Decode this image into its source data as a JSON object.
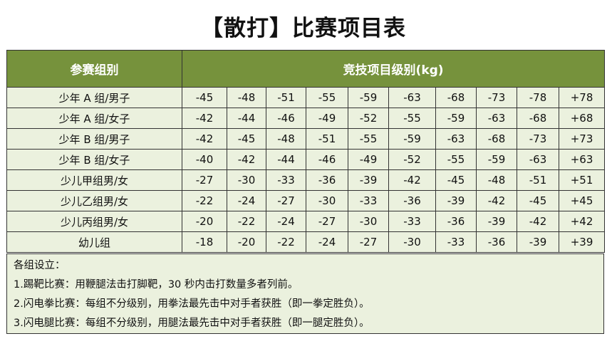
{
  "title": "【散打】比赛项目表",
  "table": {
    "headers": [
      "参赛组别",
      "竞技项目级别(kg)"
    ],
    "rows": [
      {
        "group": "少年 A 组/男子",
        "values": [
          "-45",
          "-48",
          "-51",
          "-55",
          "-59",
          "-63",
          "-68",
          "-73",
          "-78",
          "+78"
        ]
      },
      {
        "group": "少年 A 组/女子",
        "values": [
          "-42",
          "-44",
          "-46",
          "-49",
          "-52",
          "-55",
          "-59",
          "-63",
          "-68",
          "+68"
        ]
      },
      {
        "group": "少年 B 组/男子",
        "values": [
          "-42",
          "-45",
          "-48",
          "-51",
          "-55",
          "-59",
          "-63",
          "-68",
          "-73",
          "+73"
        ]
      },
      {
        "group": "少年 B 组/女子",
        "values": [
          "-40",
          "-42",
          "-44",
          "-46",
          "-49",
          "-52",
          "-55",
          "-59",
          "-63",
          "+63"
        ]
      },
      {
        "group": "少儿甲组男/女",
        "values": [
          "-27",
          "-30",
          "-33",
          "-36",
          "-39",
          "-42",
          "-45",
          "-48",
          "-51",
          "+51"
        ]
      },
      {
        "group": "少儿乙组男/女",
        "values": [
          "-22",
          "-24",
          "-27",
          "-30",
          "-33",
          "-36",
          "-39",
          "-42",
          "-45",
          "+45"
        ]
      },
      {
        "group": "少儿丙组男/女",
        "values": [
          "-20",
          "-22",
          "-24",
          "-27",
          "-30",
          "-33",
          "-36",
          "-39",
          "-42",
          "+42"
        ]
      },
      {
        "group": "幼儿组",
        "values": [
          "-18",
          "-20",
          "-22",
          "-24",
          "-27",
          "-30",
          "-33",
          "-36",
          "-39",
          "+39"
        ]
      }
    ]
  },
  "notes": [
    "各组设立：",
    "1.踢靶比赛：用鞭腿法击打脚靶，30 秒内击打数量多者列前。",
    "2.闪电拳比赛：每组不分级别，用拳法最先击中对手者获胜（即一拳定胜负）。",
    "3.闪电腿比赛：每组不分级别，用腿法最先击中对手者获胜（即一腿定胜负）。"
  ],
  "colors": {
    "header_bg": "#76923c",
    "row_bg": "#ebf1de"
  }
}
